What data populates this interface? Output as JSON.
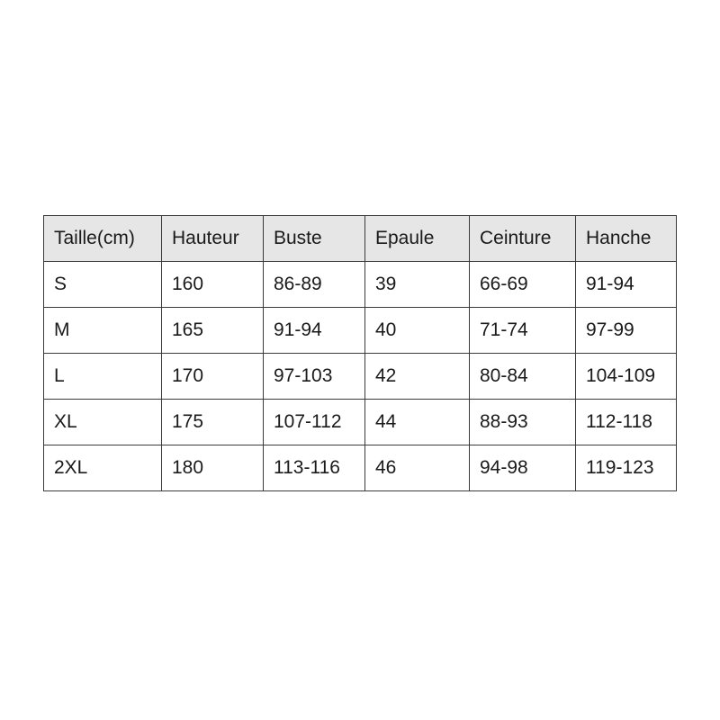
{
  "table": {
    "headers": [
      "Taille(cm)",
      "Hauteur",
      "Buste",
      "Epaule",
      "Ceinture",
      "Hanche"
    ],
    "rows": [
      [
        "S",
        "160",
        "86-89",
        "39",
        "66-69",
        "91-94"
      ],
      [
        "M",
        "165",
        "91-94",
        "40",
        "71-74",
        "97-99"
      ],
      [
        "L",
        "170",
        "97-103",
        "42",
        "80-84",
        "104-109"
      ],
      [
        "XL",
        "175",
        "107-112",
        "44",
        "88-93",
        "112-118"
      ],
      [
        "2XL",
        "180",
        "113-116",
        "46",
        "94-98",
        "119-123"
      ]
    ]
  },
  "colors": {
    "header_bg": "#e6e6e6",
    "border": "#3a3a3a"
  }
}
